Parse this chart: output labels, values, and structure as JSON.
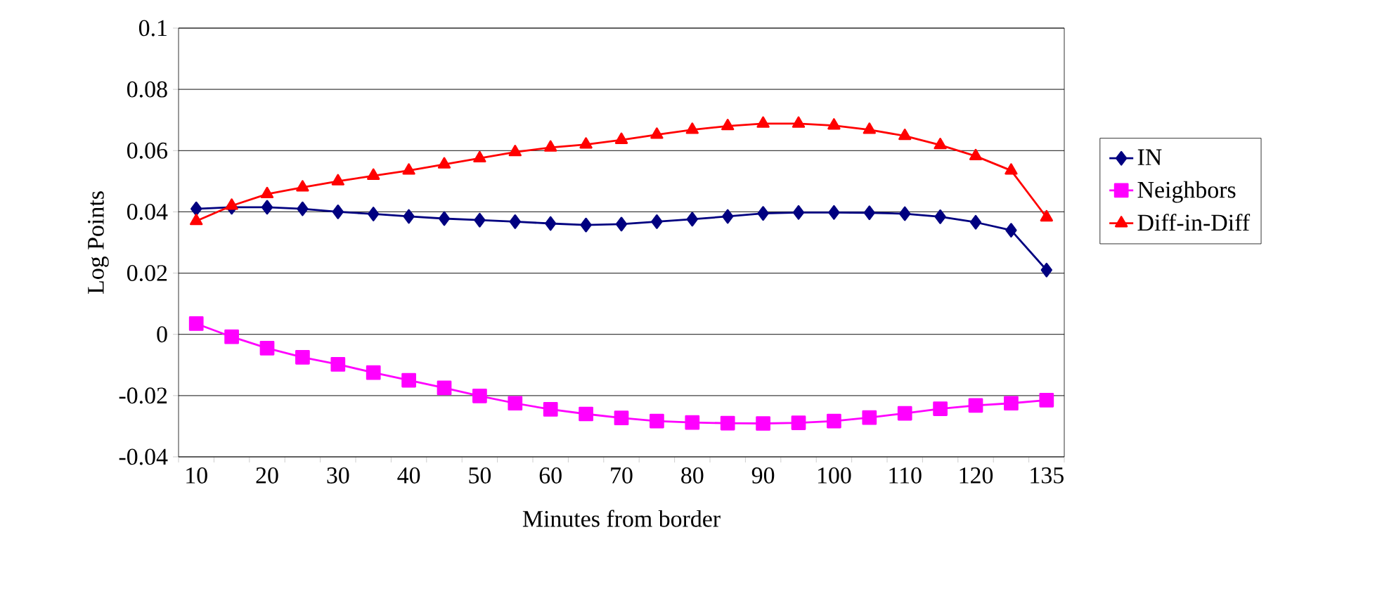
{
  "chart_data": {
    "type": "line",
    "xlabel": "Minutes from border",
    "ylabel": "Log Points",
    "categories": [
      "10",
      null,
      "20",
      null,
      "30",
      null,
      "40",
      null,
      "50",
      null,
      "60",
      null,
      "70",
      null,
      "80",
      null,
      "90",
      null,
      "100",
      null,
      "110",
      null,
      "120",
      null,
      "135"
    ],
    "ylim": [
      -0.04,
      0.1
    ],
    "yticks": [
      -0.04,
      -0.02,
      0,
      0.02,
      0.04,
      0.06,
      0.08,
      0.1
    ],
    "grid": "y",
    "legend": "right",
    "series": [
      {
        "name": "IN",
        "color": "#000080",
        "marker": "diamond",
        "values": [
          0.041,
          0.0415,
          0.0415,
          0.041,
          0.04,
          0.0393,
          0.0385,
          0.0378,
          0.0373,
          0.0368,
          0.0362,
          0.0357,
          0.036,
          0.0368,
          0.0376,
          0.0385,
          0.0395,
          0.0398,
          0.0398,
          0.0397,
          0.0394,
          0.0384,
          0.0366,
          0.034,
          0.021
        ]
      },
      {
        "name": "Neighbors",
        "color": "#ff00ff",
        "marker": "square",
        "values": [
          0.0035,
          -0.0008,
          -0.0045,
          -0.0075,
          -0.0098,
          -0.0125,
          -0.015,
          -0.0175,
          -0.0201,
          -0.0225,
          -0.0245,
          -0.026,
          -0.0273,
          -0.0283,
          -0.0288,
          -0.029,
          -0.0291,
          -0.0289,
          -0.0283,
          -0.0272,
          -0.0258,
          -0.0243,
          -0.0232,
          -0.0225,
          -0.0215
        ]
      },
      {
        "name": "Diff-in-Diff",
        "color": "#ff0000",
        "marker": "triangle",
        "values": [
          0.037,
          0.042,
          0.0458,
          0.048,
          0.05,
          0.0518,
          0.0535,
          0.0555,
          0.0575,
          0.0595,
          0.061,
          0.062,
          0.0635,
          0.0652,
          0.0668,
          0.068,
          0.0688,
          0.0688,
          0.0682,
          0.0668,
          0.0648,
          0.0618,
          0.0582,
          0.0535,
          0.0382
        ]
      }
    ]
  }
}
